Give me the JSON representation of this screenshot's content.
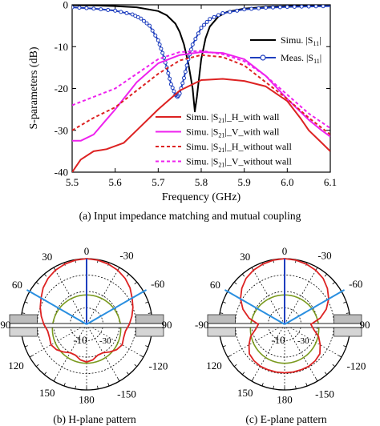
{
  "chart_data": [
    {
      "type": "line",
      "caption": "(a) Input impedance matching and mutual coupling",
      "xlabel": "Frequency (GHz)",
      "ylabel": "S-parameters (dB)",
      "xlim": [
        5.5,
        6.1
      ],
      "ylim": [
        -40,
        0
      ],
      "xticks": [
        5.5,
        5.6,
        5.7,
        5.8,
        5.9,
        6.0,
        6.1
      ],
      "yticks": [
        0,
        -10,
        -20,
        -30,
        -40
      ],
      "legend_top": [
        {
          "label": "Simu. |S",
          "sub": "11",
          "tail": "|"
        },
        {
          "label": "Meas. |S",
          "sub": "11",
          "tail": "|"
        }
      ],
      "legend_bottom": [
        {
          "label": "Simu. |S",
          "sub": "21",
          "tail": "|_H_with wall"
        },
        {
          "label": "Simu. |S",
          "sub": "21",
          "tail": "|_V_with wall"
        },
        {
          "label": "Simu. |S",
          "sub": "21",
          "tail": "|_H_without wall"
        },
        {
          "label": "Simu. |S",
          "sub": "21",
          "tail": "|_V_without wall"
        }
      ],
      "series": [
        {
          "color": "#000000",
          "dash": "solid",
          "marker": "none",
          "x": [
            5.5,
            5.55,
            5.6,
            5.65,
            5.7,
            5.72,
            5.74,
            5.75,
            5.76,
            5.77,
            5.78,
            5.785,
            5.79,
            5.8,
            5.81,
            5.82,
            5.84,
            5.86,
            5.9,
            5.95,
            6.0,
            6.05,
            6.1
          ],
          "y": [
            -0.1,
            -0.15,
            -0.3,
            -0.6,
            -1.5,
            -2.5,
            -4.5,
            -6.5,
            -9.5,
            -14,
            -20,
            -25.5,
            -22,
            -13,
            -8,
            -5.2,
            -2.8,
            -1.7,
            -0.9,
            -0.5,
            -0.3,
            -0.2,
            -0.15
          ]
        },
        {
          "color": "#1f3fbf",
          "dash": "solid",
          "marker": "circle",
          "x": [
            5.5,
            5.55,
            5.6,
            5.64,
            5.66,
            5.68,
            5.7,
            5.71,
            5.72,
            5.73,
            5.74,
            5.745,
            5.75,
            5.76,
            5.77,
            5.78,
            5.8,
            5.82,
            5.85,
            5.9,
            5.95,
            6.0,
            6.05,
            6.1
          ],
          "y": [
            -0.6,
            -0.9,
            -1.4,
            -2.3,
            -3.3,
            -5,
            -8.5,
            -11.5,
            -15,
            -19,
            -21.5,
            -22,
            -21.2,
            -17.5,
            -13,
            -9.5,
            -5.5,
            -3.4,
            -2,
            -1.1,
            -0.7,
            -0.5,
            -0.4,
            -0.3
          ]
        },
        {
          "color": "#dd2222",
          "dash": "solid",
          "marker": "none",
          "x": [
            5.5,
            5.52,
            5.55,
            5.58,
            5.62,
            5.65,
            5.7,
            5.75,
            5.8,
            5.85,
            5.9,
            5.95,
            6.0,
            6.03,
            6.05,
            6.08,
            6.1
          ],
          "y": [
            -40,
            -37,
            -35,
            -34.5,
            -33,
            -30,
            -25,
            -20.5,
            -18,
            -17.7,
            -18.2,
            -19.5,
            -23,
            -27,
            -30,
            -33,
            -35
          ]
        },
        {
          "color": "#ee22ee",
          "dash": "solid",
          "marker": "none",
          "x": [
            5.5,
            5.52,
            5.55,
            5.6,
            5.65,
            5.7,
            5.75,
            5.8,
            5.85,
            5.9,
            5.95,
            6.0,
            6.05,
            6.08,
            6.1
          ],
          "y": [
            -32.5,
            -32.5,
            -31,
            -25,
            -18.5,
            -14,
            -12,
            -11.3,
            -11.5,
            -13,
            -17,
            -22.5,
            -27.5,
            -30,
            -31.5
          ]
        },
        {
          "color": "#dd2222",
          "dash": "dash",
          "marker": "none",
          "x": [
            5.5,
            5.55,
            5.6,
            5.65,
            5.7,
            5.75,
            5.8,
            5.85,
            5.9,
            5.95,
            6.0,
            6.05,
            6.1
          ],
          "y": [
            -30,
            -27,
            -24.5,
            -20.5,
            -16.5,
            -13.3,
            -12,
            -12.5,
            -14.5,
            -18.5,
            -22.5,
            -27,
            -31
          ]
        },
        {
          "color": "#ee22ee",
          "dash": "dash",
          "marker": "none",
          "x": [
            5.5,
            5.55,
            5.6,
            5.65,
            5.7,
            5.75,
            5.8,
            5.85,
            5.9,
            5.95,
            6.0,
            6.05,
            6.1
          ],
          "y": [
            -24,
            -22,
            -20,
            -16.5,
            -13,
            -11.3,
            -11,
            -11.8,
            -13.5,
            -17,
            -21.5,
            -26,
            -29.5
          ]
        }
      ]
    },
    {
      "type": "polar",
      "caption": "(b) H-plane pattern",
      "angle_labels": [
        "0",
        "30",
        "60",
        "-90",
        "120",
        "150",
        "180",
        "-150",
        "-120",
        "90",
        "-60",
        "-30"
      ],
      "ring_label": "-10",
      "ring_label_2": "-30",
      "lobe_red_db": [
        0,
        -0.3,
        -1,
        -2,
        -3.5,
        -5.5,
        -8,
        -10,
        -12,
        -14,
        -16,
        -16,
        -15,
        -16,
        -18,
        -20,
        -20,
        -18,
        -17
      ],
      "lobe_step_deg": 10
    },
    {
      "type": "polar",
      "caption": "(c) E-plane pattern",
      "angle_labels": [
        "0",
        "30",
        "60",
        "-90",
        "120",
        "150",
        "180",
        "-150",
        "-120",
        "90",
        "-60",
        "-30"
      ],
      "ring_label": "-10",
      "ring_label_2": "-30",
      "lobe_red_db": [
        0,
        -0.3,
        -1,
        -2,
        -3.5,
        -6,
        -9,
        -13,
        -18,
        -24,
        -22,
        -18,
        -15,
        -12,
        -11,
        -10.5,
        -10.5,
        -10.5,
        -10.5
      ],
      "lobe_step_deg": 10
    }
  ]
}
